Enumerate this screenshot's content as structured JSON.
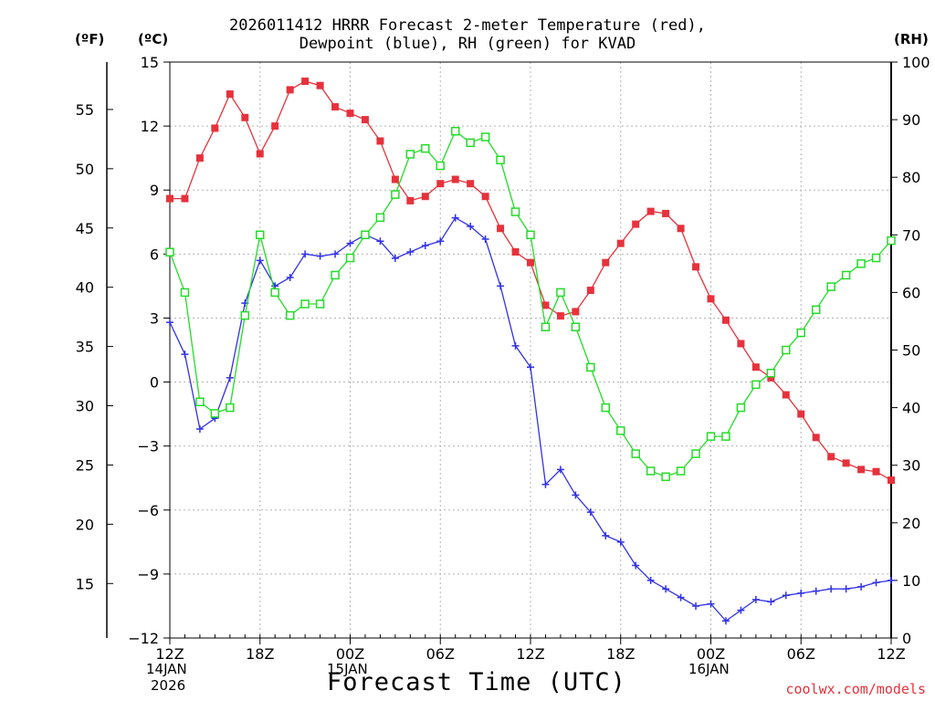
{
  "title_line1": "2026011412 HRRR Forecast 2-meter Temperature (red),",
  "title_line2": "Dewpoint (blue), RH (green) for KVAD",
  "units": {
    "f": "(ºF)",
    "c": "(ºC)",
    "rh": "(RH)"
  },
  "x_axis_title": "Forecast Time (UTC)",
  "credit": "coolwx.com/models",
  "date_labels": {
    "start_day": "14JAN",
    "start_year": "2026",
    "day2": "15JAN",
    "day3": "16JAN"
  },
  "chart_data": {
    "type": "line",
    "x_unit": "forecast hour",
    "x": [
      0,
      1,
      2,
      3,
      4,
      5,
      6,
      7,
      8,
      9,
      10,
      11,
      12,
      13,
      14,
      15,
      16,
      17,
      18,
      19,
      20,
      21,
      22,
      23,
      24,
      25,
      26,
      27,
      28,
      29,
      30,
      31,
      32,
      33,
      34,
      35,
      36,
      37,
      38,
      39,
      40,
      41,
      42,
      43,
      44,
      45,
      46,
      47,
      48
    ],
    "x_ticks": [
      {
        "hour": 0,
        "label": "12Z"
      },
      {
        "hour": 6,
        "label": "18Z"
      },
      {
        "hour": 12,
        "label": "00Z"
      },
      {
        "hour": 18,
        "label": "06Z"
      },
      {
        "hour": 24,
        "label": "12Z"
      },
      {
        "hour": 30,
        "label": "18Z"
      },
      {
        "hour": 36,
        "label": "00Z"
      },
      {
        "hour": 42,
        "label": "06Z"
      },
      {
        "hour": 48,
        "label": "12Z"
      }
    ],
    "left_axis_c": {
      "label": "(ºC)",
      "range": [
        -12,
        15
      ],
      "ticks": [
        15,
        12,
        9,
        6,
        3,
        0,
        -3,
        -6,
        -9,
        -12
      ]
    },
    "left_axis_f": {
      "label": "(ºF)",
      "ticks": [
        55,
        50,
        45,
        40,
        35,
        30,
        25,
        20,
        15
      ]
    },
    "right_axis_rh": {
      "label": "(RH)",
      "range": [
        0,
        100
      ],
      "ticks": [
        100,
        90,
        80,
        70,
        60,
        50,
        40,
        30,
        20,
        10,
        0
      ]
    },
    "grid": true,
    "series": [
      {
        "name": "Temperature",
        "axis": "C",
        "color": "#e6323c",
        "marker": "filled-square",
        "values": [
          8.6,
          8.6,
          10.5,
          11.9,
          13.5,
          12.4,
          10.7,
          12.0,
          13.7,
          14.1,
          13.9,
          12.9,
          12.6,
          12.3,
          11.3,
          9.5,
          8.5,
          8.7,
          9.3,
          9.5,
          9.3,
          8.7,
          7.2,
          6.1,
          5.6,
          3.6,
          3.1,
          3.3,
          4.3,
          5.6,
          6.5,
          7.4,
          8.0,
          7.9,
          7.2,
          5.4,
          3.9,
          2.9,
          1.8,
          0.7,
          0.2,
          -0.6,
          -1.5,
          -2.6,
          -3.5,
          -3.8,
          -4.1,
          -4.2,
          -4.6
        ]
      },
      {
        "name": "Dewpoint",
        "axis": "C",
        "color": "#3232e6",
        "marker": "plus",
        "values": [
          2.8,
          1.3,
          -2.2,
          -1.7,
          0.2,
          3.7,
          5.7,
          4.5,
          4.9,
          6.0,
          5.9,
          6.0,
          6.5,
          6.9,
          6.6,
          5.8,
          6.1,
          6.4,
          6.6,
          7.7,
          7.3,
          6.7,
          4.5,
          1.7,
          0.7,
          -4.8,
          -4.1,
          -5.3,
          -6.1,
          -7.2,
          -7.5,
          -8.6,
          -9.3,
          -9.7,
          -10.1,
          -10.5,
          -10.4,
          -11.2,
          -10.7,
          -10.2,
          -10.3,
          -10.0,
          -9.9,
          -9.8,
          -9.7,
          -9.7,
          -9.6,
          -9.4,
          -9.3
        ]
      },
      {
        "name": "Relative Humidity",
        "axis": "RH",
        "color": "#23dc28",
        "marker": "open-square",
        "values": [
          67,
          60,
          41,
          39,
          40,
          56,
          70,
          60,
          56,
          58,
          58,
          63,
          66,
          70,
          73,
          77,
          84,
          85,
          82,
          88,
          86,
          87,
          83,
          74,
          70,
          54,
          60,
          54,
          47,
          40,
          36,
          32,
          29,
          28,
          29,
          32,
          35,
          35,
          40,
          44,
          46,
          50,
          53,
          57,
          61,
          63,
          65,
          66,
          69
        ]
      }
    ]
  }
}
